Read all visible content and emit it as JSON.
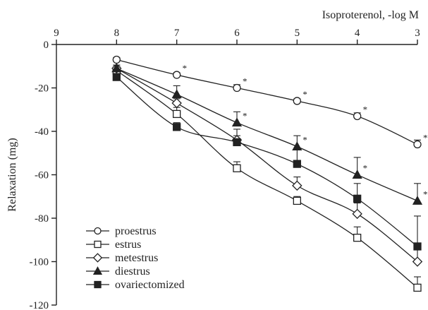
{
  "chart_data": {
    "type": "line",
    "xlabel": "Isoproterenol, -log M",
    "ylabel": "Relaxation (mg)",
    "xlim": [
      9,
      3
    ],
    "ylim": [
      -120,
      0
    ],
    "x_axis_position": "top",
    "x_ticks": [
      9,
      8,
      7,
      6,
      5,
      4,
      3
    ],
    "y_ticks": [
      0,
      -20,
      -40,
      -60,
      -80,
      -100,
      -120
    ],
    "grid": false,
    "legend_position": "bottom-left",
    "significance_marker": "*",
    "series": [
      {
        "name": "proestrus",
        "marker": "open-circle",
        "x": [
          8,
          7,
          6,
          5,
          4,
          3
        ],
        "values": [
          -7,
          -14,
          -20,
          -26,
          -33,
          -46
        ],
        "error": [
          1,
          1,
          1.5,
          1,
          1.5,
          2
        ],
        "significant": [
          false,
          true,
          true,
          true,
          true,
          true
        ]
      },
      {
        "name": "estrus",
        "marker": "open-square",
        "x": [
          8,
          7,
          6,
          5,
          4,
          3
        ],
        "values": [
          -12,
          -32,
          -57,
          -72,
          -89,
          -112
        ],
        "error": [
          1.5,
          3,
          3,
          2,
          5,
          5
        ],
        "significant": [
          false,
          false,
          false,
          false,
          false,
          false
        ]
      },
      {
        "name": "metestrus",
        "marker": "open-diamond",
        "x": [
          8,
          7,
          6,
          5,
          4,
          3
        ],
        "values": [
          -11,
          -27,
          -44,
          -65,
          -78,
          -100
        ],
        "error": [
          1.5,
          2,
          2,
          4,
          5,
          6
        ],
        "significant": [
          false,
          false,
          false,
          false,
          false,
          false
        ]
      },
      {
        "name": "diestrus",
        "marker": "filled-triangle",
        "x": [
          8,
          7,
          6,
          5,
          4,
          3
        ],
        "values": [
          -11,
          -23,
          -36,
          -47,
          -60,
          -72
        ],
        "error": [
          1.5,
          4,
          5,
          5,
          8,
          8
        ],
        "significant": [
          false,
          false,
          true,
          true,
          true,
          true
        ]
      },
      {
        "name": "ovariectomized",
        "marker": "filled-square",
        "x": [
          8,
          7,
          6,
          5,
          4,
          3
        ],
        "values": [
          -15,
          -38,
          -45,
          -55,
          -71,
          -93
        ],
        "error": [
          1.5,
          2,
          6,
          7,
          7,
          14
        ],
        "significant": [
          false,
          false,
          false,
          false,
          false,
          false
        ]
      }
    ]
  }
}
